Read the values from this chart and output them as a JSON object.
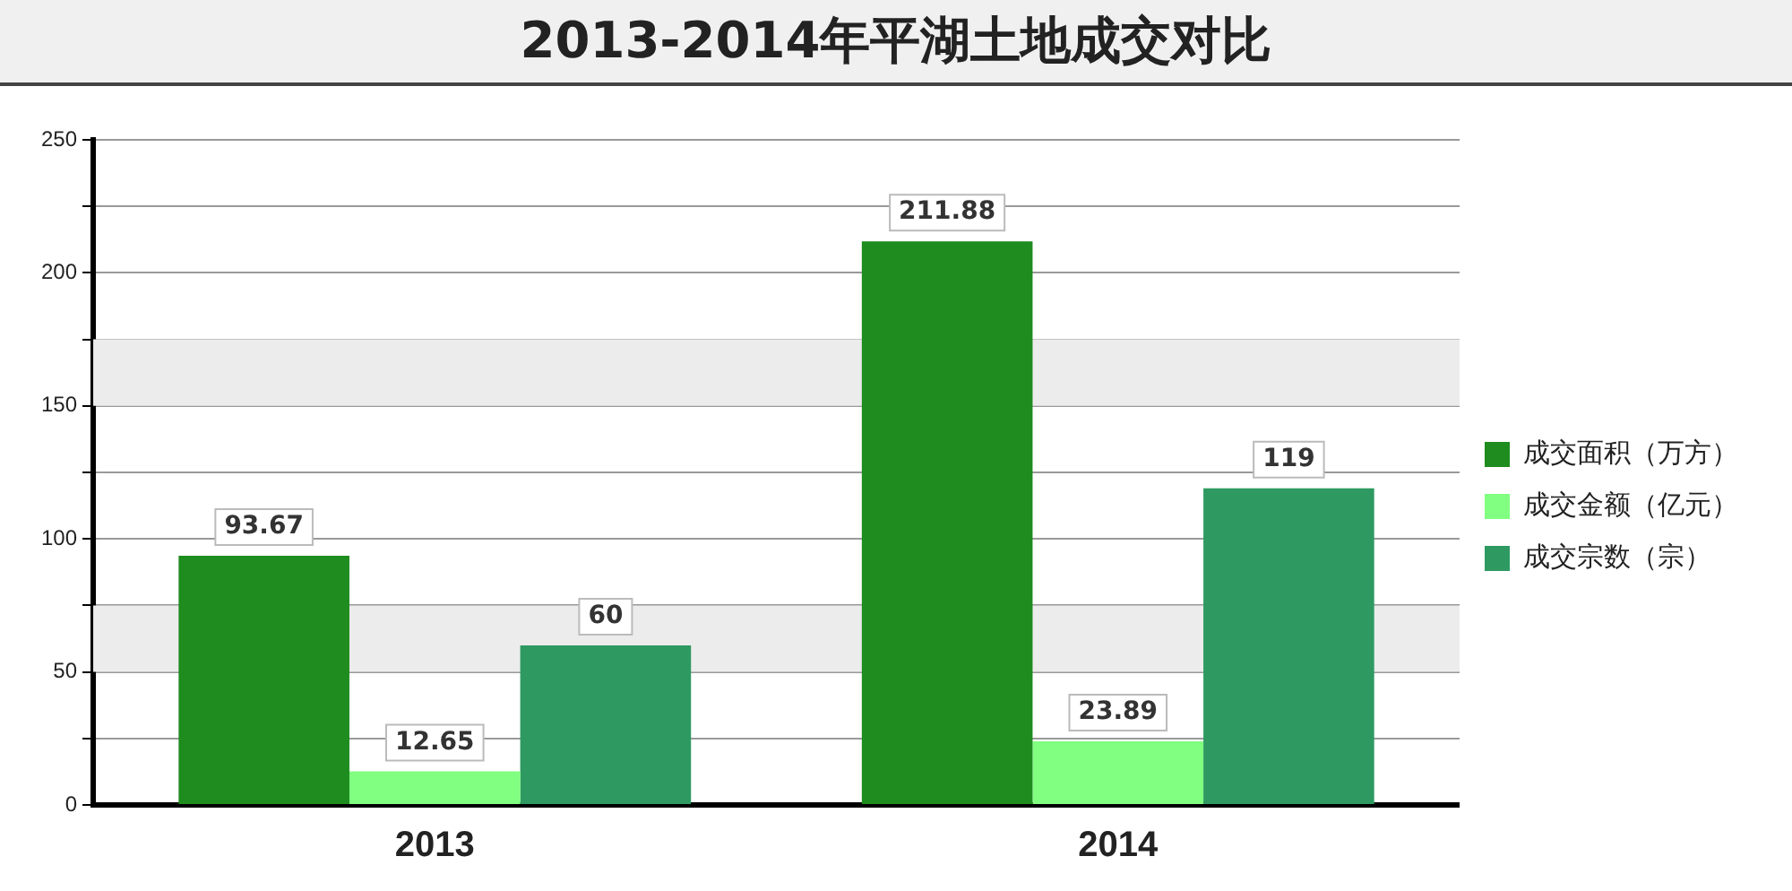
{
  "chart_data": {
    "type": "bar",
    "title": "2013-2014年平湖土地成交对比",
    "categories": [
      "2013",
      "2014"
    ],
    "series": [
      {
        "name": "成交面积（万方）",
        "color": "#1e8c1e",
        "values": [
          93.67,
          211.88
        ]
      },
      {
        "name": "成交金额（亿元）",
        "color": "#80ff80",
        "values": [
          12.65,
          23.89
        ]
      },
      {
        "name": "成交宗数（宗）",
        "color": "#2e9a62",
        "values": [
          60,
          119
        ]
      }
    ],
    "ylim": [
      0,
      250
    ],
    "yticks": [
      0,
      {
        "value": 25,
        "label": null
      },
      50,
      {
        "value": 75,
        "label": null
      },
      100,
      {
        "value": 125,
        "label": null
      },
      150,
      {
        "value": 175,
        "label": null
      },
      200,
      {
        "value": 225,
        "label": null
      },
      250
    ],
    "grid": "y",
    "legend": "right",
    "data_labels": true
  }
}
